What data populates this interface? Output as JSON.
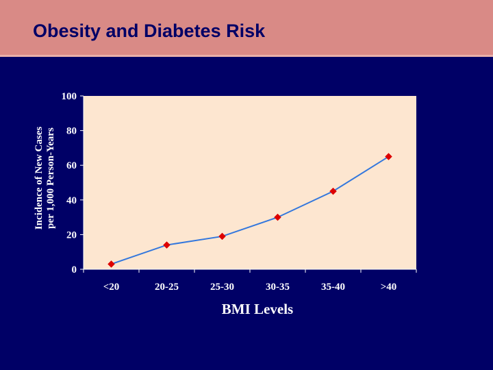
{
  "slide": {
    "title": "Obesity and Diabetes Risk"
  },
  "colors": {
    "header_bg": "#D98A86",
    "slide_bg": "#000066",
    "plot_bg": "#FDE6D0",
    "line": "#3377DD",
    "marker": "#DD0000",
    "text": "#FFFFFF"
  },
  "chart_data": {
    "type": "line",
    "title": "",
    "categories": [
      "<20",
      "20-25",
      "25-30",
      "30-35",
      "35-40",
      ">40"
    ],
    "series": [
      {
        "name": "Incidence",
        "values": [
          3,
          14,
          19,
          30,
          45,
          65
        ]
      }
    ],
    "xlabel": "BMI Levels",
    "ylabel_lines": [
      "Incidence of New Cases",
      "per 1,000 Person-Years"
    ],
    "ylim": [
      0,
      100
    ],
    "yticks": [
      0,
      20,
      40,
      60,
      80,
      100
    ],
    "grid": false,
    "legend": "none"
  }
}
